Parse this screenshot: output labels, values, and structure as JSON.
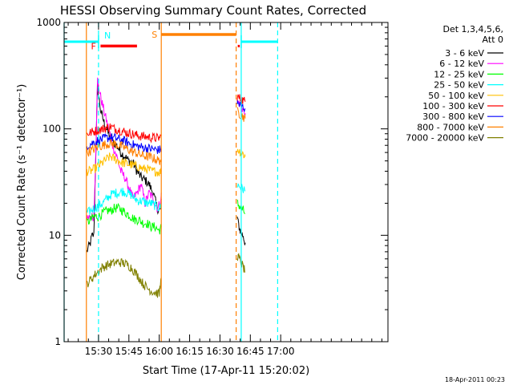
{
  "chart_data": {
    "type": "line",
    "title": "HESSI Observing Summary Count Rates, Corrected",
    "xlabel": "Start Time (17-Apr-11 15:20:02)",
    "ylabel": "Corrected Count Rate (s⁻¹ detector⁻¹)",
    "yscale": "log",
    "ylim": [
      1,
      1000
    ],
    "xlim_minutes": [
      15.0,
      175.0
    ],
    "y_ticks": [
      {
        "value": 1,
        "label": "1"
      },
      {
        "value": 10,
        "label": "10"
      },
      {
        "value": 100,
        "label": "100"
      },
      {
        "value": 1000,
        "label": "1000"
      }
    ],
    "x_ticks": [
      {
        "minute": 32.0,
        "label": "15:30"
      },
      {
        "minute": 47.0,
        "label": "15:45"
      },
      {
        "minute": 62.0,
        "label": "16:00"
      },
      {
        "minute": 77.0,
        "label": "16:15"
      },
      {
        "minute": 92.0,
        "label": "16:30"
      },
      {
        "minute": 107.0,
        "label": "16:45"
      },
      {
        "minute": 122.0,
        "label": "17:00"
      }
    ],
    "legend": {
      "placement": "right",
      "header": [
        "Det 1,3,4,5,6,",
        "Att 0"
      ]
    },
    "series": [
      {
        "name": "3 - 6 keV",
        "color": "#000000",
        "segments": [
          {
            "x": [
              26.2,
              26.8,
              27.5,
              28.0,
              28.5,
              29.0,
              29.7,
              30.5,
              31.5,
              33.0,
              35.0,
              37.0,
              39.0,
              41.0,
              43.0,
              45.0,
              47.0,
              49.0,
              51.0,
              53.0,
              55.0,
              57.0,
              59.0,
              61.0,
              62.5,
              63.0
            ],
            "y": [
              7,
              7.5,
              8,
              8.5,
              9.5,
              10,
              10,
              45,
              250,
              150,
              110,
              90,
              75,
              70,
              60,
              55,
              50,
              48,
              40,
              35,
              33,
              30,
              25,
              18,
              17,
              22
            ]
          },
          {
            "x": [
              100.5,
              101.0,
              101.5,
              102.0,
              102.5,
              103.0,
              103.5,
              104.0,
              104.5
            ],
            "y": [
              15,
              13,
              12,
              11,
              11,
              10,
              10,
              9,
              8.5
            ]
          }
        ]
      },
      {
        "name": "6 - 12 keV",
        "color": "#ff00ff",
        "segments": [
          {
            "x": [
              26.2,
              27.0,
              28.0,
              29.0,
              29.7,
              30.5,
              31.5,
              33.0,
              35.0,
              37.0,
              39.0,
              41.0,
              43.0,
              45.0,
              47.0,
              49.0,
              51.0,
              53.0,
              55.0,
              57.0,
              59.0,
              61.0,
              62.5,
              63.0
            ],
            "y": [
              14,
              14,
              15,
              15,
              15,
              50,
              290,
              200,
              140,
              100,
              70,
              55,
              40,
              35,
              28,
              22,
              25,
              30,
              20,
              25,
              22,
              18,
              20,
              25
            ]
          },
          {
            "x": [
              100.5,
              101.5,
              102.5,
              103.5,
              104.5
            ],
            "y": [
              180,
              175,
              160,
              150,
              140
            ]
          }
        ]
      },
      {
        "name": "12 - 25 keV",
        "color": "#00ff00",
        "segments": [
          {
            "x": [
              26.2,
              28.0,
              30.0,
              32.0,
              34.0,
              36.0,
              38.0,
              40.0,
              42.0,
              44.0,
              46.0,
              48.0,
              50.0,
              52.0,
              54.0,
              56.0,
              58.0,
              60.0,
              62.0,
              63.0
            ],
            "y": [
              13,
              14,
              15,
              15,
              16,
              17,
              17,
              18,
              18,
              17,
              16,
              15,
              14,
              14,
              13,
              13,
              12,
              12,
              11,
              12
            ]
          },
          {
            "x": [
              100.5,
              101.5,
              102.5,
              103.5,
              104.5
            ],
            "y": [
              20,
              19,
              18,
              17,
              16
            ]
          }
        ]
      },
      {
        "name": "25 - 50 keV",
        "color": "#00ffff",
        "segments": [
          {
            "x": [
              26.2,
              28.0,
              30.0,
              32.0,
              34.0,
              36.0,
              38.0,
              40.0,
              42.0,
              44.0,
              46.0,
              48.0,
              50.0,
              52.0,
              54.0,
              56.0,
              58.0,
              60.0,
              62.0,
              63.0
            ],
            "y": [
              16,
              17,
              18,
              19,
              20,
              22,
              24,
              25,
              25,
              26,
              25,
              24,
              22,
              21,
              21,
              20,
              20,
              19,
              18,
              19
            ]
          },
          {
            "x": [
              100.5,
              101.5,
              102.5,
              103.5,
              104.5
            ],
            "y": [
              30,
              29,
              28,
              27,
              26
            ]
          }
        ]
      },
      {
        "name": "50 - 100 keV",
        "color": "#ffbf00",
        "segments": [
          {
            "x": [
              26.2,
              28.0,
              30.0,
              32.0,
              34.0,
              36.0,
              38.0,
              40.0,
              42.0,
              44.0,
              46.0,
              48.0,
              50.0,
              52.0,
              54.0,
              56.0,
              58.0,
              60.0,
              62.0,
              63.0
            ],
            "y": [
              40,
              40,
              42,
              45,
              48,
              52,
              55,
              52,
              50,
              48,
              47,
              46,
              45,
              44,
              42,
              42,
              40,
              40,
              39,
              40
            ]
          },
          {
            "x": [
              100.5,
              101.5,
              102.5,
              103.5,
              104.5
            ],
            "y": [
              65,
              62,
              60,
              58,
              55
            ]
          }
        ]
      },
      {
        "name": "100 - 300 keV",
        "color": "#ff0000",
        "segments": [
          {
            "x": [
              26.2,
              28.0,
              30.0,
              32.0,
              34.0,
              36.0,
              38.0,
              40.0,
              42.0,
              44.0,
              46.0,
              48.0,
              50.0,
              52.0,
              54.0,
              56.0,
              58.0,
              60.0,
              62.0,
              63.0
            ],
            "y": [
              90,
              92,
              95,
              98,
              100,
              102,
              105,
              100,
              98,
              95,
              92,
              90,
              88,
              86,
              85,
              84,
              83,
              82,
              82,
              85
            ]
          },
          {
            "x": [
              100.5,
              101.5,
              102.5,
              103.5,
              104.5
            ],
            "y": [
              200,
              195,
              190,
              185,
              180
            ]
          }
        ]
      },
      {
        "name": "300 - 800 keV",
        "color": "#0000ff",
        "segments": [
          {
            "x": [
              26.2,
              28.0,
              30.0,
              32.0,
              34.0,
              36.0,
              38.0,
              40.0,
              42.0,
              44.0,
              46.0,
              48.0,
              50.0,
              52.0,
              54.0,
              56.0,
              58.0,
              60.0,
              62.0,
              63.0
            ],
            "y": [
              70,
              72,
              75,
              78,
              80,
              82,
              83,
              82,
              80,
              78,
              75,
              72,
              70,
              68,
              67,
              66,
              65,
              64,
              63,
              65
            ]
          },
          {
            "x": [
              100.5,
              101.5,
              102.5,
              103.5,
              104.5
            ],
            "y": [
              175,
              170,
              165,
              160,
              155
            ]
          }
        ]
      },
      {
        "name": "800 - 7000 keV",
        "color": "#ff8000",
        "segments": [
          {
            "x": [
              26.2,
              28.0,
              30.0,
              32.0,
              34.0,
              36.0,
              38.0,
              40.0,
              42.0,
              44.0,
              46.0,
              48.0,
              50.0,
              52.0,
              54.0,
              56.0,
              58.0,
              60.0,
              62.0,
              63.0
            ],
            "y": [
              60,
              62,
              65,
              68,
              70,
              72,
              73,
              72,
              70,
              68,
              65,
              62,
              60,
              58,
              56,
              55,
              54,
              52,
              50,
              52
            ]
          },
          {
            "x": [
              100.5,
              101.5,
              102.5,
              103.5,
              104.5
            ],
            "y": [
              145,
              140,
              135,
              130,
              125
            ]
          }
        ]
      },
      {
        "name": "7000 - 20000 keV",
        "color": "#808000",
        "segments": [
          {
            "x": [
              26.2,
              28.0,
              30.0,
              32.0,
              34.0,
              36.0,
              38.0,
              40.0,
              42.0,
              44.0,
              46.0,
              48.0,
              50.0,
              52.0,
              54.0,
              56.0,
              58.0,
              60.0,
              62.0,
              63.0
            ],
            "y": [
              3.5,
              3.8,
              4.2,
              4.6,
              5.0,
              5.2,
              5.4,
              5.5,
              5.6,
              5.5,
              5.3,
              5.0,
              4.5,
              4.0,
              3.5,
              3.2,
              3.0,
              2.9,
              2.8,
              4.0
            ]
          },
          {
            "x": [
              100.5,
              101.5,
              102.5,
              103.5,
              104.5
            ],
            "y": [
              6.5,
              6.0,
              5.5,
              5.0,
              4.5
            ]
          }
        ]
      }
    ],
    "annotations": {
      "night_bars": {
        "color": "#00ffff",
        "y_value": 660,
        "segments": [
          [
            15.0,
            32.0
          ],
          [
            102.5,
            120.5
          ]
        ],
        "bracket_ticks_minute": [
          32.0,
          102.5
        ]
      },
      "flare_bar": {
        "label": "F",
        "color": "#ff0000",
        "y_value": 600,
        "range": [
          33.0,
          51.0
        ]
      },
      "saa_bar": {
        "label": "S",
        "color": "#ff8000",
        "y_value": 770,
        "range": [
          63.0,
          100.0
        ]
      },
      "night_label": {
        "label": "N",
        "minute": 34.0
      },
      "vlines": [
        {
          "minute": 15.0,
          "color": "#00ffff",
          "style": "solid"
        },
        {
          "minute": 26.0,
          "color": "#ff8000",
          "style": "solid"
        },
        {
          "minute": 32.0,
          "color": "#00ffff",
          "style": "dashed"
        },
        {
          "minute": 63.0,
          "color": "#ff8000",
          "style": "solid"
        },
        {
          "minute": 100.0,
          "color": "#ff8000",
          "style": "dashed"
        },
        {
          "minute": 102.5,
          "color": "#00ffff",
          "style": "solid"
        },
        {
          "minute": 120.5,
          "color": "#00ffff",
          "style": "dashed"
        }
      ]
    },
    "footer_timestamp": "18-Apr-2011 00:23"
  }
}
